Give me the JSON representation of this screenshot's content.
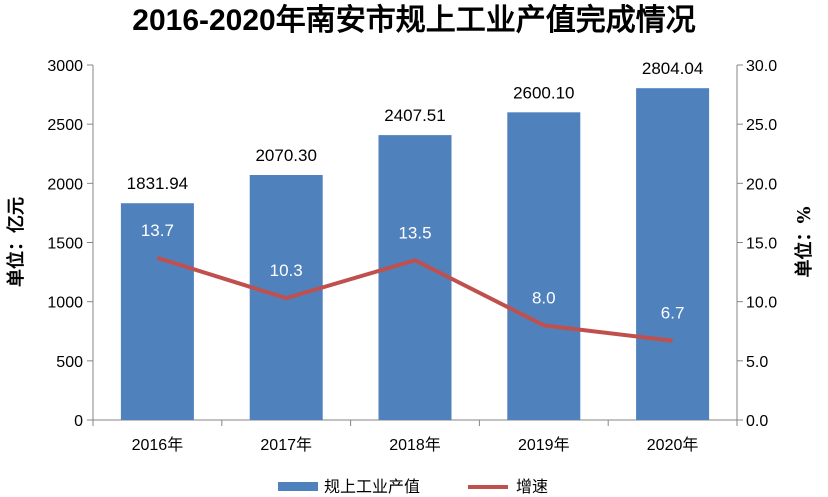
{
  "chart_data": {
    "type": "bar",
    "title": "2016-2020年南安市规上工业产值完成情况",
    "categories": [
      "2016年",
      "2017年",
      "2018年",
      "2019年",
      "2020年"
    ],
    "series": [
      {
        "name": "规上工业产值",
        "type": "bar",
        "axis": "left",
        "color": "#4F81BD",
        "values": [
          1831.94,
          2070.3,
          2407.51,
          2600.1,
          2804.04
        ],
        "labels": [
          "1831.94",
          "2070.30",
          "2407.51",
          "2600.10",
          "2804.04"
        ]
      },
      {
        "name": "增速",
        "type": "line",
        "axis": "right",
        "color": "#C0504D",
        "values": [
          13.7,
          10.3,
          13.5,
          8.0,
          6.7
        ],
        "labels": [
          "13.7",
          "10.3",
          "13.5",
          "8.0",
          "6.7"
        ]
      }
    ],
    "ylabel": "单位：亿元",
    "y2label": "单位：%",
    "ylim": [
      0,
      3000
    ],
    "y2lim": [
      0,
      30
    ],
    "yticks": [
      "0",
      "500",
      "1000",
      "1500",
      "2000",
      "2500",
      "3000"
    ],
    "y2ticks": [
      "0.0",
      "5.0",
      "10.0",
      "15.0",
      "20.0",
      "25.0",
      "30.0"
    ],
    "grid": false,
    "legend_position": "bottom"
  }
}
